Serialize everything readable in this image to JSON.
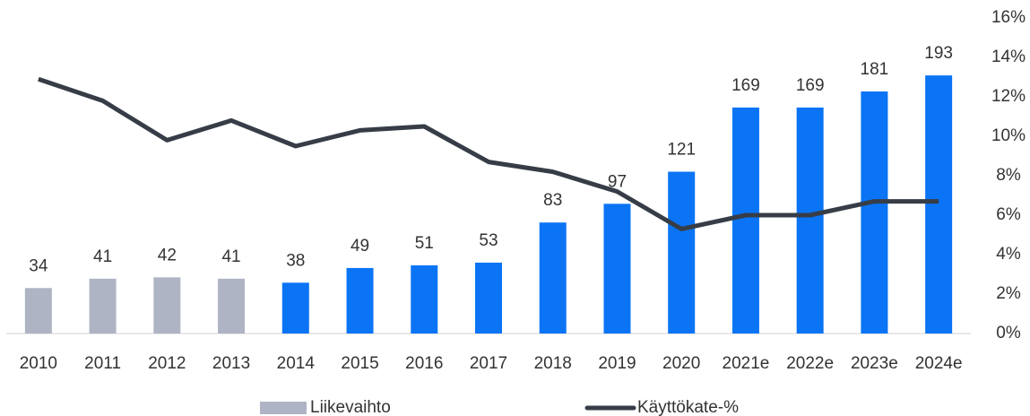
{
  "chart_data": {
    "type": "bar-line",
    "categories": [
      "2010",
      "2011",
      "2012",
      "2013",
      "2014",
      "2015",
      "2016",
      "2017",
      "2018",
      "2019",
      "2020",
      "2021e",
      "2022e",
      "2023e",
      "2024e"
    ],
    "ylim": [
      0,
      236
    ],
    "y2lim": [
      0,
      16
    ],
    "y2ticks": [
      {
        "value": 0,
        "label": "0%"
      },
      {
        "value": 2,
        "label": "2%"
      },
      {
        "value": 4,
        "label": "4%"
      },
      {
        "value": 6,
        "label": "6%"
      },
      {
        "value": 8,
        "label": "8%"
      },
      {
        "value": 10,
        "label": "10%"
      },
      {
        "value": 12,
        "label": "12%"
      },
      {
        "value": 14,
        "label": "14%"
      },
      {
        "value": 16,
        "label": "16%"
      }
    ],
    "series": [
      {
        "name": "Liikevaihto",
        "type": "bar",
        "color": "#aeb4c4",
        "colors": [
          "#aeb4c4",
          "#aeb4c4",
          "#aeb4c4",
          "#aeb4c4",
          "#0a74f5",
          "#0a74f5",
          "#0a74f5",
          "#0a74f5",
          "#0a74f5",
          "#0a74f5",
          "#0a74f5",
          "#0a74f5",
          "#0a74f5",
          "#0a74f5",
          "#0a74f5"
        ],
        "values": [
          34,
          41,
          42,
          41,
          38,
          49,
          51,
          53,
          83,
          97,
          121,
          169,
          169,
          181,
          193
        ]
      },
      {
        "name": "Käyttökate-%",
        "type": "line",
        "axis": "y2",
        "color": "#363d47",
        "values": [
          12.9,
          11.8,
          9.8,
          10.8,
          9.5,
          10.3,
          10.5,
          8.7,
          8.2,
          7.2,
          5.3,
          6.0,
          6.0,
          6.7,
          6.7
        ]
      }
    ]
  }
}
